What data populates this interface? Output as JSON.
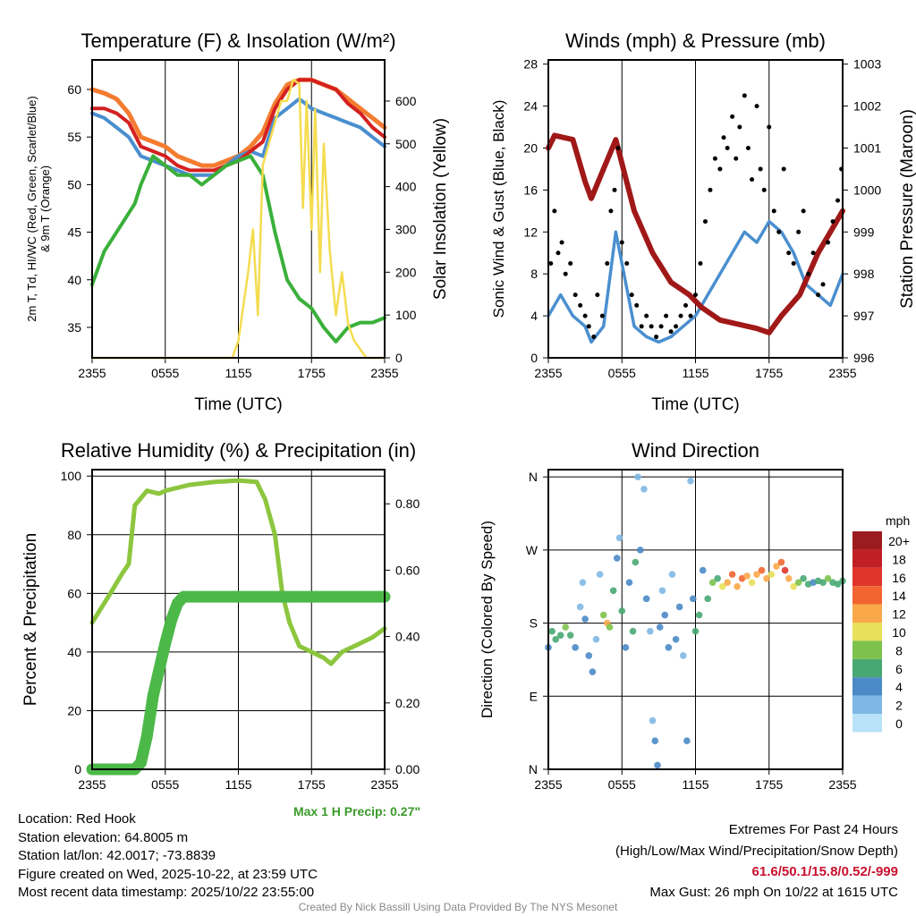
{
  "chart_data": [
    {
      "type": "line",
      "title": "Temperature (F) & Insolation (W/m²)",
      "xlabel": "Time (UTC)",
      "ylabel": "2m T, Td, HI/WC (Red, Green, Scarlet/Blue) & 9m T (Orange)",
      "ylabel_right": "Solar Insolation (Yellow)",
      "xticks": [
        "2355",
        "0555",
        "1155",
        "1755",
        "2355"
      ],
      "yticks": [
        "35",
        "40",
        "45",
        "50",
        "55",
        "60"
      ],
      "yticks_right": [
        "0",
        "100",
        "200",
        "300",
        "400",
        "500",
        "600"
      ],
      "ylim": [
        31.8,
        63.1
      ],
      "ylim_right": [
        0,
        696
      ],
      "xlim": [
        0,
        24
      ],
      "series": [
        {
          "name": "9m T",
          "color": "#f47c30",
          "axis": "left",
          "x": [
            0,
            1,
            2,
            3,
            4,
            5,
            6,
            7,
            8,
            9,
            10,
            11,
            12,
            13,
            14,
            15,
            16,
            17,
            18,
            19,
            20,
            21,
            22,
            23,
            24
          ],
          "values": [
            60,
            59.6,
            59,
            57.5,
            55,
            54.5,
            54,
            53,
            52.5,
            52,
            52,
            52.5,
            53,
            54,
            55.5,
            58.5,
            60.5,
            61,
            61,
            60.5,
            60,
            59,
            58,
            57,
            56
          ]
        },
        {
          "name": "HI/WC",
          "color": "#4a8fcf",
          "axis": "left",
          "x": [
            0,
            1,
            2,
            3,
            4,
            5,
            6,
            7,
            8,
            9,
            10,
            11,
            12,
            13,
            14,
            15,
            16,
            17,
            18,
            19,
            20,
            21,
            22,
            23,
            24
          ],
          "values": [
            57.5,
            57,
            56,
            55,
            53,
            52.5,
            52,
            51.5,
            51,
            51,
            51,
            52,
            53,
            53.5,
            53,
            57,
            58,
            59,
            58,
            57.5,
            57,
            56.5,
            56,
            55,
            54
          ]
        },
        {
          "name": "2m T",
          "color": "#d42020",
          "axis": "left",
          "x": [
            0,
            1,
            2,
            3,
            4,
            5,
            6,
            7,
            8,
            9,
            10,
            11,
            12,
            13,
            14,
            15,
            16,
            17,
            18,
            19,
            20,
            21,
            22,
            23,
            24
          ],
          "values": [
            58,
            58,
            57.5,
            56.5,
            54,
            53.5,
            53,
            52,
            51.5,
            51.5,
            51.5,
            52,
            52.5,
            53.5,
            54.5,
            58,
            60,
            61,
            61,
            60.5,
            60,
            58.5,
            57.5,
            56,
            55
          ]
        },
        {
          "name": "Td",
          "color": "#3ab03a",
          "axis": "left",
          "x": [
            0,
            1,
            2,
            3,
            3.5,
            4,
            5,
            6,
            7,
            8,
            9,
            10,
            11,
            12,
            13,
            14,
            15,
            16,
            17,
            18,
            19,
            20,
            21,
            22,
            23,
            24
          ],
          "values": [
            39.5,
            43,
            45,
            47,
            48,
            50,
            53,
            52,
            51,
            51,
            50,
            51,
            52,
            52.5,
            53,
            51,
            45,
            40,
            38,
            37,
            35,
            33.5,
            35,
            35.5,
            35.5,
            36
          ]
        },
        {
          "name": "Solar",
          "color": "#f5dc50",
          "axis": "right",
          "x": [
            0,
            11.5,
            12,
            12.8,
            13.2,
            13.6,
            14,
            14.5,
            15,
            15.5,
            16,
            16.5,
            17,
            17.3,
            17.6,
            18,
            18.3,
            18.7,
            19,
            19.5,
            20,
            20.5,
            21,
            21.5,
            22.5,
            24
          ],
          "values": [
            0,
            0,
            40,
            200,
            300,
            100,
            450,
            500,
            550,
            600,
            600,
            650,
            640,
            350,
            600,
            300,
            580,
            200,
            500,
            250,
            100,
            200,
            80,
            40,
            0,
            0
          ]
        }
      ]
    },
    {
      "type": "line",
      "title": "Winds (mph) & Pressure (mb)",
      "xlabel": "Time (UTC)",
      "ylabel": "Sonic Wind & Gust (Blue, Black)",
      "ylabel_right": "Station Pressure (Maroon)",
      "xticks": [
        "2355",
        "0555",
        "1155",
        "1755",
        "2355"
      ],
      "yticks": [
        "0",
        "4",
        "8",
        "12",
        "16",
        "20",
        "24",
        "28"
      ],
      "yticks_right": [
        "996",
        "997",
        "998",
        "999",
        "1000",
        "1001",
        "1002",
        "1003"
      ],
      "ylim": [
        0,
        28.4
      ],
      "ylim_right": [
        996,
        1003.1
      ],
      "xlim": [
        0,
        24
      ],
      "series": [
        {
          "name": "Sonic Wind",
          "color": "#4a8fcf",
          "axis": "left",
          "x": [
            0,
            1,
            2,
            3,
            3.5,
            4.5,
            5.5,
            6.5,
            7,
            8,
            9,
            10,
            11,
            12,
            13,
            14,
            15,
            16,
            17,
            18,
            19,
            20,
            21,
            22,
            23,
            24
          ],
          "values": [
            4,
            6,
            4,
            3,
            1.5,
            3,
            12,
            6,
            3,
            2,
            1.5,
            2,
            3,
            4,
            6,
            8,
            10,
            12,
            11,
            13,
            12,
            10,
            7,
            6,
            5,
            8
          ]
        },
        {
          "name": "Pressure",
          "color": "#a01818",
          "axis": "right",
          "x": [
            0,
            0.5,
            2,
            3,
            3.5,
            4.5,
            5.5,
            7,
            8.5,
            10,
            11.5,
            12.5,
            14,
            15.5,
            17,
            18,
            19,
            20.5,
            22,
            24
          ],
          "values": [
            1001,
            1001.3,
            1001.2,
            1000.2,
            999.8,
            1000.5,
            1001.2,
            999.5,
            998.5,
            997.8,
            997.5,
            997.2,
            996.9,
            996.8,
            996.7,
            996.6,
            997,
            997.5,
            998.5,
            999.5
          ]
        },
        {
          "name": "Gust",
          "color": "#000000",
          "axis": "left",
          "type": "scatter",
          "x": [
            0.2,
            0.5,
            0.8,
            1.1,
            1.4,
            1.8,
            2.2,
            2.6,
            3,
            3.3,
            3.7,
            4,
            4.4,
            4.8,
            5.1,
            5.4,
            5.7,
            6,
            6.4,
            6.8,
            7.2,
            7.6,
            8,
            8.4,
            8.8,
            9.2,
            9.6,
            10,
            10.4,
            10.8,
            11.2,
            11.6,
            12,
            12.4,
            12.8,
            13.2,
            13.6,
            14,
            14.3,
            14.6,
            15,
            15.3,
            15.6,
            16,
            16.3,
            16.6,
            17,
            17.3,
            17.6,
            18,
            18.4,
            18.8,
            19.2,
            19.6,
            20,
            20.4,
            20.8,
            21.2,
            21.6,
            22,
            22.4,
            22.8,
            23.2,
            23.6,
            23.9
          ],
          "values": [
            9,
            14,
            10,
            11,
            8,
            9,
            6,
            5,
            4,
            3,
            2,
            6,
            4,
            9,
            14,
            16,
            20,
            11,
            9,
            6,
            5,
            3,
            4,
            3,
            2,
            3,
            4,
            2.5,
            3,
            4,
            5,
            4,
            6,
            9,
            13,
            16,
            19,
            18,
            21,
            20,
            23,
            19,
            22,
            25,
            20,
            17,
            24,
            18,
            16,
            22,
            14,
            12,
            18,
            10,
            9,
            12,
            14,
            8,
            10,
            6,
            7,
            11,
            13,
            15,
            18
          ]
        }
      ]
    },
    {
      "type": "line",
      "title": "Relative Humidity (%) & Precipitation (in)",
      "ylabel": "Percent & Precipitation",
      "xticks": [
        "2355",
        "0555",
        "1155",
        "1755",
        "2355"
      ],
      "yticks": [
        "0",
        "20",
        "40",
        "60",
        "80",
        "100"
      ],
      "yticks_right": [
        "0.00",
        "0.20",
        "0.40",
        "0.60",
        "0.80"
      ],
      "ylim": [
        0,
        102.2
      ],
      "ylim_right": [
        0,
        0.903
      ],
      "xlim": [
        0,
        24
      ],
      "annotation": "Max 1 H Precip: 0.27\"",
      "series": [
        {
          "name": "RH",
          "color": "#8cc63e",
          "axis": "left",
          "x": [
            0,
            1.5,
            2.5,
            3,
            3.5,
            4.5,
            5.5,
            6,
            8,
            10,
            12,
            13.5,
            14.2,
            15,
            15.6,
            16.2,
            17,
            18,
            19,
            19.6,
            20.5,
            22,
            23,
            24
          ],
          "values": [
            50,
            60,
            67,
            70,
            90,
            95,
            94,
            95,
            97,
            98,
            98.5,
            98,
            92,
            80,
            60,
            50,
            42,
            40,
            38,
            36,
            40,
            43,
            45,
            48
          ]
        },
        {
          "name": "Precip",
          "color": "#4cb848",
          "axis": "right",
          "x": [
            0,
            3.5,
            4,
            4.5,
            5,
            5.5,
            6,
            6.5,
            7,
            7.5,
            24
          ],
          "values": [
            0,
            0,
            0.02,
            0.1,
            0.22,
            0.3,
            0.38,
            0.45,
            0.5,
            0.52,
            0.52
          ]
        }
      ]
    },
    {
      "type": "scatter",
      "title": "Wind Direction",
      "ylabel": "Direction (Colored By Speed)",
      "xticks": [
        "2355",
        "0555",
        "1155",
        "1755",
        "2355"
      ],
      "yticks": [
        "N",
        "E",
        "S",
        "W",
        "N"
      ],
      "ylim": [
        0,
        369
      ],
      "xlim": [
        0,
        24
      ],
      "legend": {
        "title": "mph",
        "labels": [
          "20+",
          "18",
          "16",
          "14",
          "12",
          "10",
          "8",
          "6",
          "4",
          "2",
          "0"
        ],
        "colors": [
          "#9b1b1e",
          "#c01f26",
          "#e0352b",
          "#f26530",
          "#f9a94a",
          "#e8e05a",
          "#7dc24d",
          "#48a873",
          "#4a8ac6",
          "#7fb8e4",
          "#b8e2f7"
        ]
      },
      "points": [
        [
          0,
          150,
          4
        ],
        [
          0.3,
          170,
          6
        ],
        [
          0.6,
          160,
          6
        ],
        [
          1,
          165,
          6
        ],
        [
          1.4,
          175,
          8
        ],
        [
          1.8,
          165,
          6
        ],
        [
          2.2,
          150,
          4
        ],
        [
          2.6,
          200,
          2
        ],
        [
          2.8,
          230,
          2
        ],
        [
          3,
          185,
          4
        ],
        [
          3.3,
          140,
          4
        ],
        [
          3.6,
          120,
          4
        ],
        [
          3.9,
          160,
          2
        ],
        [
          4.2,
          240,
          2
        ],
        [
          4.5,
          190,
          8
        ],
        [
          4.8,
          180,
          12
        ],
        [
          5,
          175,
          8
        ],
        [
          5.3,
          220,
          6
        ],
        [
          5.6,
          260,
          4
        ],
        [
          5.8,
          285,
          2
        ],
        [
          6,
          195,
          6
        ],
        [
          6.3,
          150,
          4
        ],
        [
          6.6,
          230,
          4
        ],
        [
          6.9,
          170,
          6
        ],
        [
          7.1,
          255,
          6
        ],
        [
          7.3,
          360,
          2
        ],
        [
          7.5,
          270,
          4
        ],
        [
          7.8,
          345,
          2
        ],
        [
          8,
          210,
          4
        ],
        [
          8.3,
          170,
          2
        ],
        [
          8.5,
          60,
          2
        ],
        [
          8.7,
          35,
          4
        ],
        [
          8.9,
          5,
          4
        ],
        [
          9.1,
          175,
          4
        ],
        [
          9.3,
          220,
          2
        ],
        [
          9.5,
          190,
          4
        ],
        [
          9.8,
          150,
          4
        ],
        [
          10.1,
          240,
          2
        ],
        [
          10.4,
          160,
          4
        ],
        [
          10.7,
          200,
          4
        ],
        [
          11,
          140,
          2
        ],
        [
          11.3,
          35,
          4
        ],
        [
          11.6,
          355,
          2
        ],
        [
          11.8,
          210,
          4
        ],
        [
          12,
          170,
          6
        ],
        [
          12.3,
          190,
          6
        ],
        [
          12.6,
          245,
          4
        ],
        [
          13,
          210,
          6
        ],
        [
          13.4,
          230,
          8
        ],
        [
          13.8,
          235,
          6
        ],
        [
          14.2,
          225,
          10
        ],
        [
          14.6,
          230,
          12
        ],
        [
          15,
          240,
          14
        ],
        [
          15.4,
          225,
          12
        ],
        [
          15.8,
          235,
          14
        ],
        [
          16.2,
          238,
          12
        ],
        [
          16.6,
          230,
          10
        ],
        [
          17,
          240,
          12
        ],
        [
          17.4,
          245,
          14
        ],
        [
          17.8,
          235,
          12
        ],
        [
          18.2,
          240,
          10
        ],
        [
          18.6,
          250,
          12
        ],
        [
          19,
          255,
          14
        ],
        [
          19.3,
          245,
          16
        ],
        [
          19.6,
          235,
          12
        ],
        [
          20,
          225,
          10
        ],
        [
          20.4,
          230,
          8
        ],
        [
          20.8,
          235,
          6
        ],
        [
          21.2,
          228,
          6
        ],
        [
          21.6,
          230,
          4
        ],
        [
          22,
          232,
          6
        ],
        [
          22.4,
          230,
          6
        ],
        [
          22.8,
          235,
          8
        ],
        [
          23.2,
          230,
          6
        ],
        [
          23.6,
          228,
          6
        ],
        [
          24,
          232,
          6
        ]
      ]
    }
  ],
  "info": {
    "location": "Location: Red Hook",
    "elevation": "Station elevation: 64.8005 m",
    "latlon": "Station lat/lon: 42.0017; -73.8839",
    "created": "Figure created on Wed, 2025-10-22, at 23:59 UTC",
    "recent": "Most recent data timestamp: 2025/10/22 23:55:00"
  },
  "extremes": {
    "title": "Extremes For Past 24 Hours",
    "subtitle": "(High/Low/Max Wind/Precipitation/Snow Depth)",
    "values": "61.6/50.1/15.8/0.52/-999",
    "gust": "Max Gust: 26 mph On 10/22 at 1615 UTC",
    "color": "#c8102e"
  },
  "credit": "Created By Nick Bassill Using Data Provided By The NYS Mesonet"
}
